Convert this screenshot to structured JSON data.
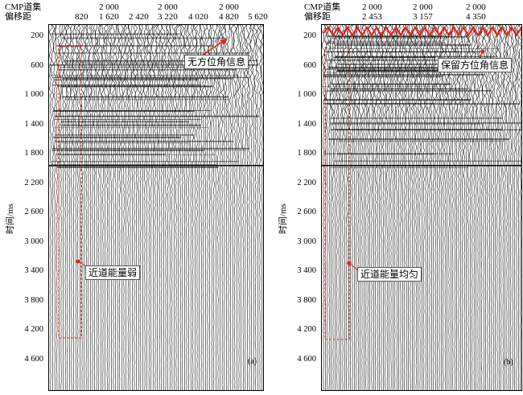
{
  "panel_a": {
    "header_label_1": "CMP道集",
    "header_label_2": "偏移距",
    "header_row_1": [
      "2 000",
      "2 000",
      "2 000"
    ],
    "header_row_2": [
      "820",
      "1 620",
      "2 420",
      "3 220",
      "4 020",
      "4 820",
      "5 620"
    ],
    "y_label": "时间/ms",
    "y_ticks": [
      "200",
      "600",
      "1 000",
      "1 400",
      "1 800",
      "2 200",
      "2 600",
      "3 000",
      "3 400",
      "3 800",
      "4 200",
      "4 600"
    ],
    "callout_top": "无方位角信息",
    "callout_mid": "近道能量弱",
    "tag": "(a)"
  },
  "panel_b": {
    "header_label_1": "CMP道集",
    "header_label_2": "偏移距",
    "header_row_1": [
      "2 000",
      "2 000",
      "2 000"
    ],
    "header_row_2": [
      "2 453",
      "3 157",
      "4 350"
    ],
    "y_label": "时间/ms",
    "y_ticks": [
      "200",
      "600",
      "1 000",
      "1 400",
      "1 800",
      "2 200",
      "2 600",
      "3 000",
      "3 400",
      "3 800",
      "4 200",
      "4 600"
    ],
    "callout_top": "保留方位角信息",
    "callout_mid": "近道能量均匀",
    "tag": "(b)"
  },
  "colors": {
    "annotation": "#e0251b",
    "trace": "#000000"
  }
}
